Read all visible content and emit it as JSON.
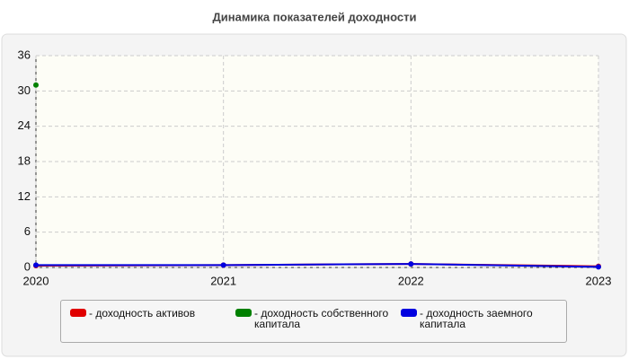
{
  "chart_data": {
    "type": "line",
    "title": "Динамика показателей доходности",
    "x": [
      2020,
      2021,
      2022,
      2023
    ],
    "xlim": [
      2020,
      2023
    ],
    "xticks": [
      2020,
      2021,
      2022,
      2023
    ],
    "ylim": [
      0,
      36
    ],
    "yticks": [
      0,
      6,
      12,
      18,
      24,
      30,
      36
    ],
    "grid": true,
    "series": [
      {
        "name": "- доходность активов",
        "color": "#e00000",
        "values": [
          0.3,
          0.4,
          0.6,
          0.2
        ]
      },
      {
        "name": "- доходность собственного капитала",
        "color": "#008000",
        "values": [
          31,
          null,
          null,
          null
        ]
      },
      {
        "name": "- доходность заемного капитала",
        "color": "#0000e0",
        "values": [
          0.4,
          0.4,
          0.6,
          0.1
        ]
      }
    ]
  }
}
